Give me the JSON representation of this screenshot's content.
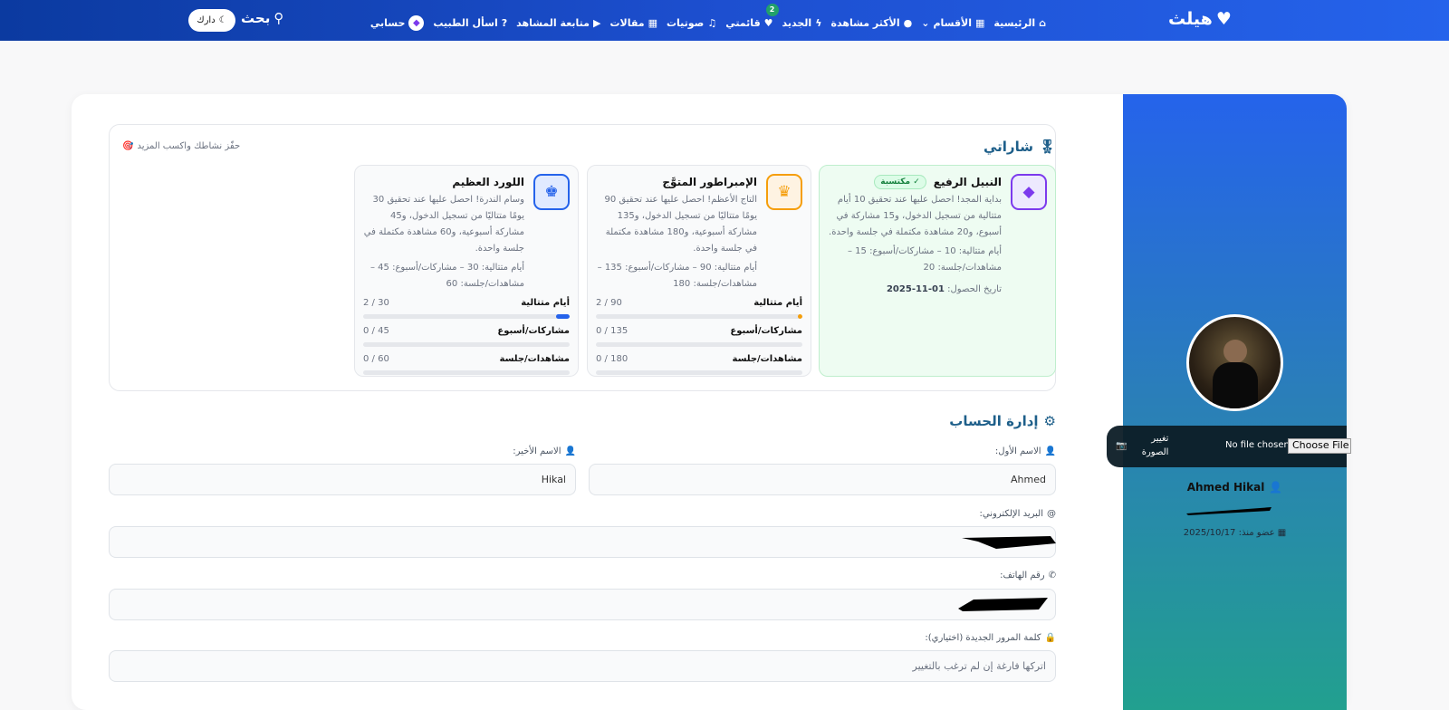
{
  "nav": {
    "logo": "هيلث",
    "items": [
      "الرئيسية",
      "الأقسام",
      "الأكثر مشاهدة",
      "الجديد",
      "قائمتي",
      "صوتيات",
      "مقالات",
      "متابعة المشاهد",
      "اسأل الطبيب",
      "حسابي"
    ],
    "list_count": "2",
    "search": "بحث",
    "dark": "دارك"
  },
  "badges": {
    "title": "شاراتي",
    "hint": "حفّز نشاطك واكسب المزيد",
    "cards": [
      {
        "name": "النبيل الرفيع",
        "earned_label": "✓ مكتسبة",
        "desc": "بداية المجد! احصل عليها عند تحقيق 10 أيام متتالية من تسجيل الدخول، و15 مشاركة في أسبوع، و20 مشاهدة مكتملة في جلسة واحدة.",
        "criteria": "أيام متتالية: 10 – مشاركات/أسبوع: 15 – مشاهدات/جلسة: 20",
        "date_label": "تاريخ الحصول:",
        "date": "01-11-2025",
        "color": "#7c3aed"
      },
      {
        "name": "الإمبراطور المتوَّج",
        "desc": "التاج الأعظم! احصل عليها عند تحقيق 90 يومًا متتاليًا من تسجيل الدخول، و135 مشاركة أسبوعية، و180 مشاهدة مكتملة في جلسة واحدة.",
        "criteria": "أيام متتالية: 90 – مشاركات/أسبوع: 135 – مشاهدات/جلسة: 180",
        "color": "#f59e0b",
        "progress": [
          {
            "label": "أيام متتالية",
            "value": "90 / 2",
            "pct": 2
          },
          {
            "label": "مشاركات/أسبوع",
            "value": "135 / 0",
            "pct": 0
          },
          {
            "label": "مشاهدات/جلسة",
            "value": "180 / 0",
            "pct": 0
          }
        ]
      },
      {
        "name": "اللورد العظيم",
        "desc": "وسام الندرة! احصل عليها عند تحقيق 30 يومًا متتاليًا من تسجيل الدخول، و45 مشاركة أسبوعية، و60 مشاهدة مكتملة في جلسة واحدة.",
        "criteria": "أيام متتالية: 30 – مشاركات/أسبوع: 45 – مشاهدات/جلسة: 60",
        "color": "#2563eb",
        "progress": [
          {
            "label": "أيام متتالية",
            "value": "30 / 2",
            "pct": 6.7
          },
          {
            "label": "مشاركات/أسبوع",
            "value": "45 / 0",
            "pct": 0
          },
          {
            "label": "مشاهدات/جلسة",
            "value": "60 / 0",
            "pct": 0
          }
        ]
      }
    ]
  },
  "account": {
    "title": "إدارة الحساب",
    "first_label": "الاسم الأول:",
    "first_value": "Ahmed",
    "last_label": "الاسم الأخير:",
    "last_value": "Hikal",
    "email_label": "البريد الإلكتروني:",
    "phone_label": "رقم الهاتف:",
    "password_label": "كلمة المرور الجديدة (اختياري):",
    "password_placeholder": "اتركها فارغة إن لم ترغب بالتغيير"
  },
  "profile": {
    "change_photo": "تغيير الصورة",
    "no_file": "No file chosen",
    "choose_file": "Choose File",
    "name": "Ahmed Hikal",
    "member_since": "عضو منذ: 2025/10/17"
  }
}
